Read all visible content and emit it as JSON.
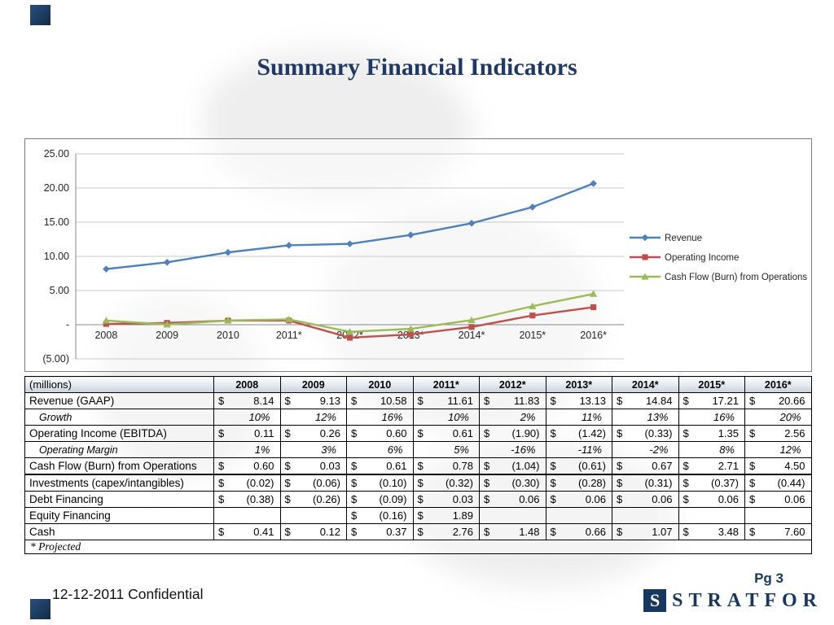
{
  "slide": {
    "title": "Summary Financial Indicators",
    "footer_left": "12-12-2011 Confidential",
    "page_label": "Pg 3",
    "logo_initial": "S",
    "logo_text": "STRATFOR"
  },
  "chart_data": {
    "type": "line",
    "categories": [
      "2008",
      "2009",
      "2010",
      "2011*",
      "2012*",
      "2013*",
      "2014*",
      "2015*",
      "2016*"
    ],
    "series": [
      {
        "name": "Revenue",
        "color": "#4F81BD",
        "marker": "diamond",
        "values": [
          8.14,
          9.13,
          10.58,
          11.61,
          11.83,
          13.13,
          14.84,
          17.21,
          20.66
        ]
      },
      {
        "name": "Operating Income",
        "color": "#C0504D",
        "marker": "square",
        "values": [
          0.11,
          0.26,
          0.6,
          0.61,
          -1.9,
          -1.42,
          -0.33,
          1.35,
          2.56
        ]
      },
      {
        "name": "Cash Flow (Burn) from Operations",
        "color": "#9BBB59",
        "marker": "triangle",
        "values": [
          0.6,
          0.03,
          0.61,
          0.78,
          -1.04,
          -0.61,
          0.67,
          2.71,
          4.5
        ]
      }
    ],
    "ylim": [
      -5,
      25
    ],
    "ytick_labels": [
      "(5.00)",
      "-",
      "5.00",
      "10.00",
      "15.00",
      "20.00",
      "25.00"
    ],
    "grid": true,
    "legend_position": "right"
  },
  "table": {
    "header": [
      "(millions)",
      "2008",
      "2009",
      "2010",
      "2011*",
      "2012*",
      "2013*",
      "2014*",
      "2015*",
      "2016*"
    ],
    "rows": [
      {
        "label": "Revenue (GAAP)",
        "style": "currency",
        "values": [
          "8.14",
          "9.13",
          "10.58",
          "11.61",
          "11.83",
          "13.13",
          "14.84",
          "17.21",
          "20.66"
        ]
      },
      {
        "label": "Growth",
        "style": "percent",
        "values": [
          "10%",
          "12%",
          "16%",
          "10%",
          "2%",
          "11%",
          "13%",
          "16%",
          "20%"
        ]
      },
      {
        "label": "Operating Income (EBITDA)",
        "style": "currency",
        "values": [
          "0.11",
          "0.26",
          "0.60",
          "0.61",
          "(1.90)",
          "(1.42)",
          "(0.33)",
          "1.35",
          "2.56"
        ]
      },
      {
        "label": "Operating Margin",
        "style": "percent",
        "values": [
          "1%",
          "3%",
          "6%",
          "5%",
          "-16%",
          "-11%",
          "-2%",
          "8%",
          "12%"
        ]
      },
      {
        "label": "Cash Flow (Burn) from Operations",
        "style": "currency",
        "values": [
          "0.60",
          "0.03",
          "0.61",
          "0.78",
          "(1.04)",
          "(0.61)",
          "0.67",
          "2.71",
          "4.50"
        ]
      },
      {
        "label": "Investments (capex/intangibles)",
        "style": "currency",
        "values": [
          "(0.02)",
          "(0.06)",
          "(0.10)",
          "(0.32)",
          "(0.30)",
          "(0.28)",
          "(0.31)",
          "(0.37)",
          "(0.44)"
        ]
      },
      {
        "label": "Debt Financing",
        "style": "currency",
        "values": [
          "(0.38)",
          "(0.26)",
          "(0.09)",
          "0.03",
          "0.06",
          "0.06",
          "0.06",
          "0.06",
          "0.06"
        ]
      },
      {
        "label": "Equity Financing",
        "style": "currency",
        "values": [
          "",
          "",
          "(0.16)",
          "1.89",
          "",
          "",
          "",
          "",
          ""
        ]
      },
      {
        "label": "Cash",
        "style": "currency",
        "values": [
          "0.41",
          "0.12",
          "0.37",
          "2.76",
          "1.48",
          "0.66",
          "1.07",
          "3.48",
          "7.60"
        ]
      }
    ],
    "footnote": "* Projected"
  }
}
